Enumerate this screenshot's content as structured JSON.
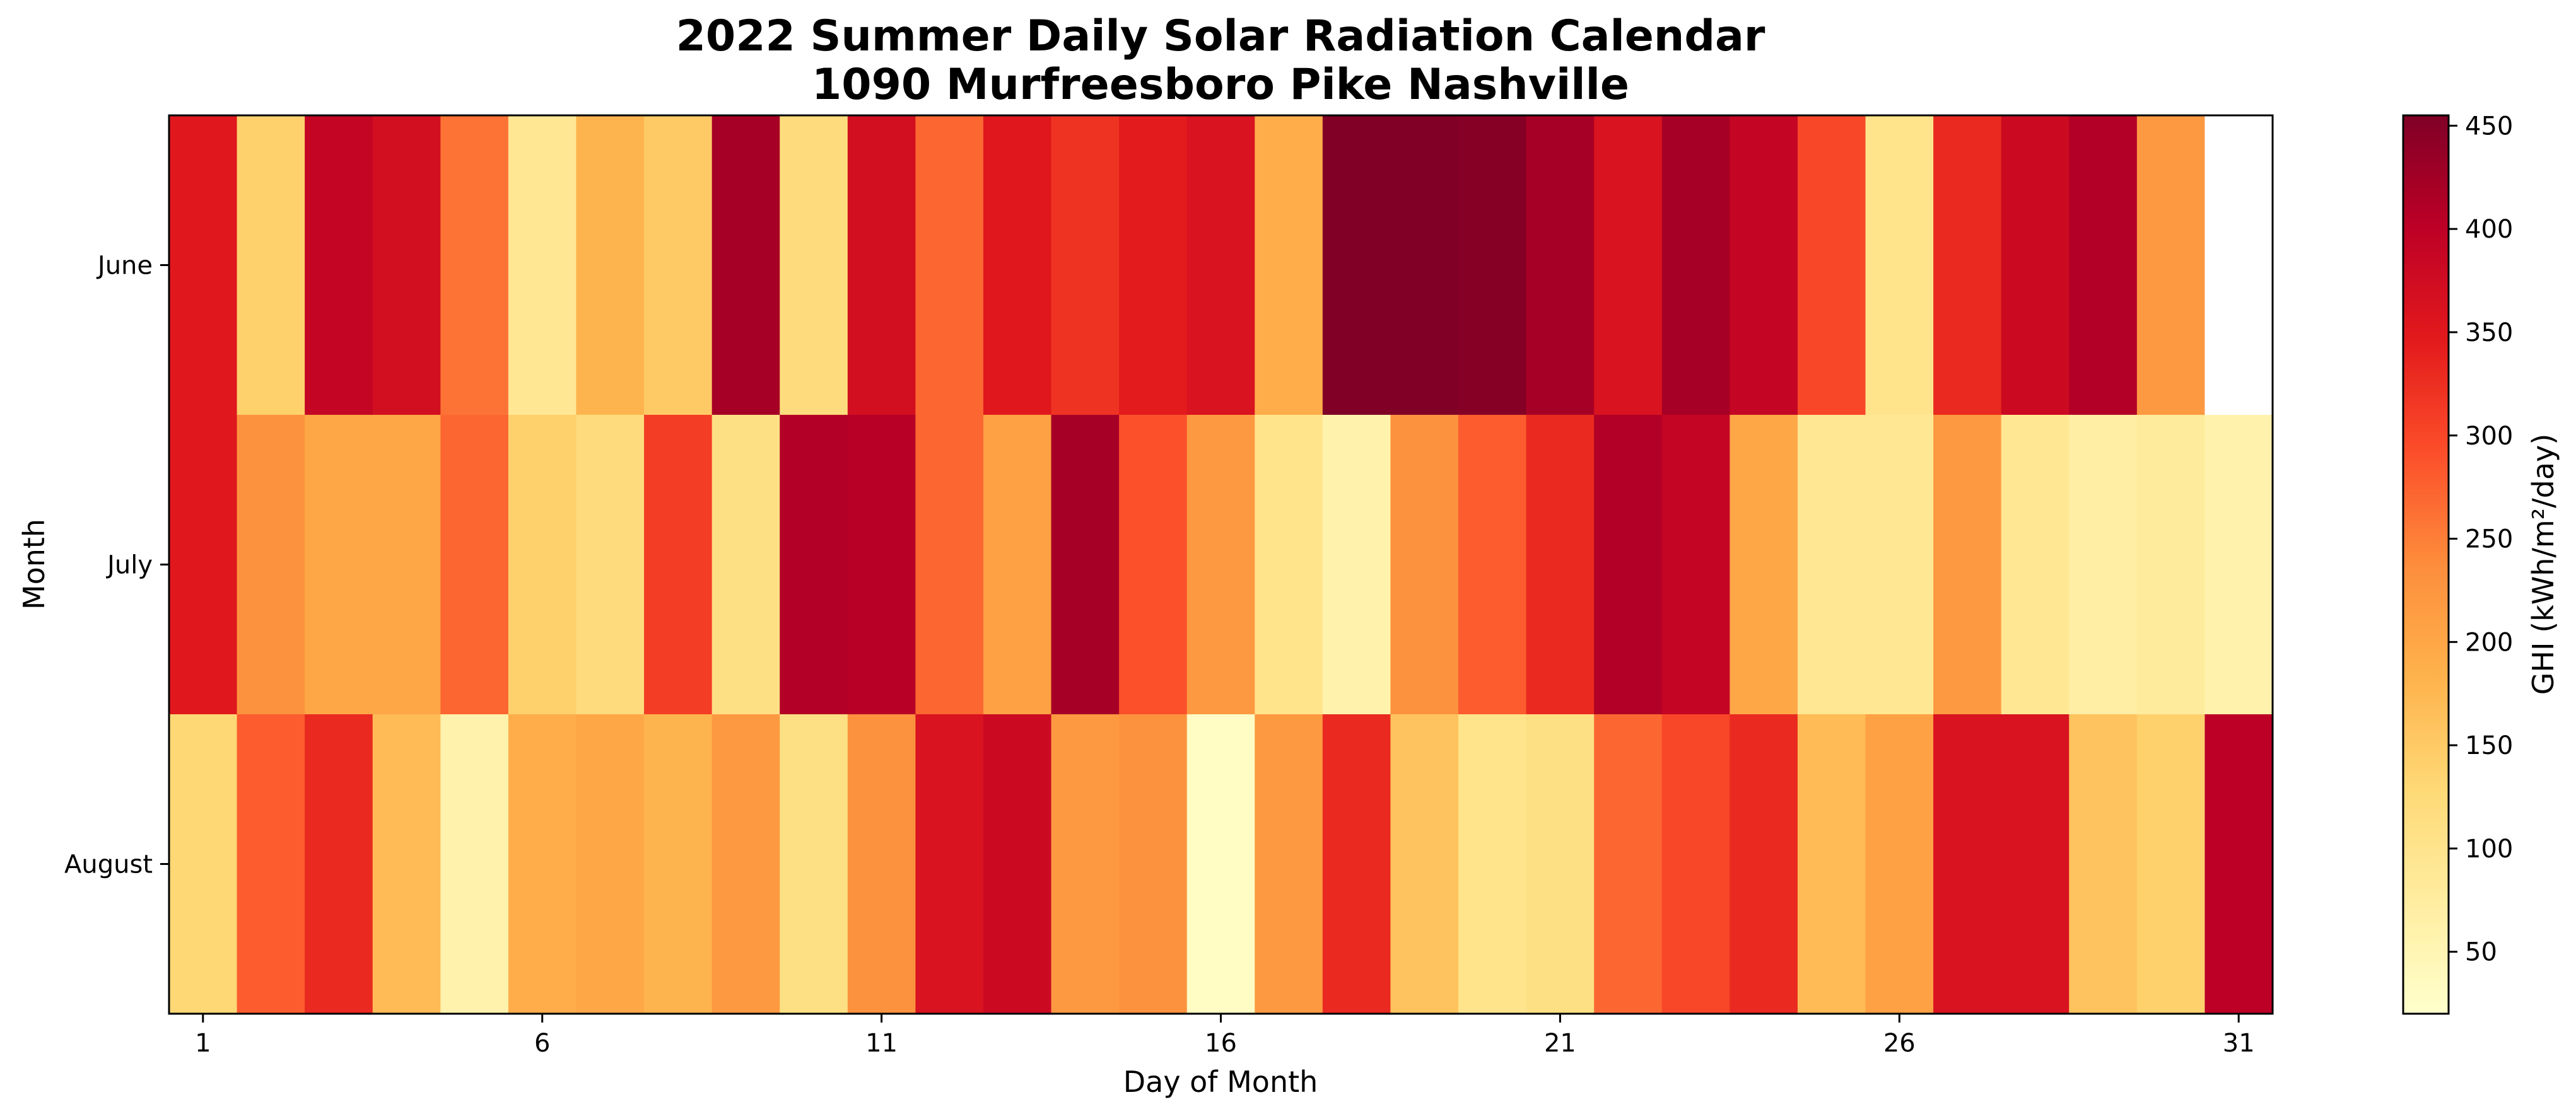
{
  "chart_data": {
    "type": "heatmap",
    "title": "2022 Summer Daily Solar Radiation Calendar",
    "subtitle": "1090 Murfreesboro Pike Nashville",
    "xlabel": "Day of Month",
    "ylabel": "Month",
    "x_ticks": [
      "1",
      "6",
      "11",
      "16",
      "21",
      "26",
      "31"
    ],
    "x_tick_days": [
      1,
      6,
      11,
      16,
      21,
      26,
      31
    ],
    "days": [
      1,
      2,
      3,
      4,
      5,
      6,
      7,
      8,
      9,
      10,
      11,
      12,
      13,
      14,
      15,
      16,
      17,
      18,
      19,
      20,
      21,
      22,
      23,
      24,
      25,
      26,
      27,
      28,
      29,
      30,
      31
    ],
    "rows": [
      "June",
      "July",
      "August"
    ],
    "values": [
      [
        350,
        140,
        390,
        370,
        260,
        90,
        180,
        150,
        420,
        120,
        370,
        270,
        350,
        320,
        345,
        360,
        190,
        455,
        455,
        450,
        420,
        360,
        420,
        390,
        300,
        100,
        330,
        380,
        410,
        220,
        null
      ],
      [
        350,
        230,
        200,
        200,
        270,
        140,
        120,
        310,
        110,
        410,
        405,
        270,
        210,
        420,
        290,
        220,
        100,
        60,
        230,
        280,
        330,
        410,
        390,
        200,
        90,
        90,
        220,
        90,
        70,
        80,
        60
      ],
      [
        130,
        280,
        330,
        170,
        60,
        190,
        200,
        180,
        220,
        110,
        230,
        360,
        380,
        220,
        230,
        30,
        220,
        330,
        160,
        100,
        110,
        270,
        300,
        330,
        170,
        210,
        360,
        360,
        160,
        140,
        400
      ]
    ],
    "colorbar": {
      "label": "GHI (kWh/m²/day)",
      "min": 20,
      "max": 455,
      "ticks": [
        50,
        100,
        150,
        200,
        250,
        300,
        350,
        400,
        450
      ],
      "tick_labels": [
        "50",
        "100",
        "150",
        "200",
        "250",
        "300",
        "350",
        "400",
        "450"
      ],
      "colormap": "YlOrRd",
      "colors": [
        "#ffffcc",
        "#ffeda0",
        "#fed976",
        "#feb24c",
        "#fd8d3c",
        "#fc4e2a",
        "#e31a1c",
        "#bd0026",
        "#800026"
      ]
    },
    "grid": false
  }
}
